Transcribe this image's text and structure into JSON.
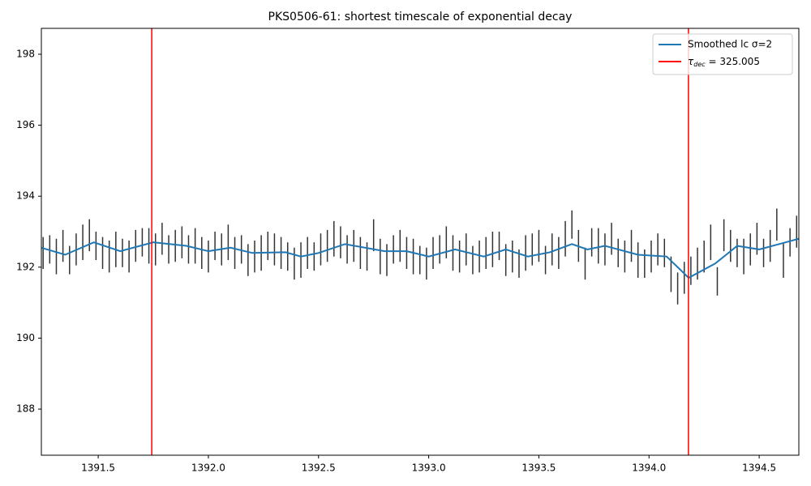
{
  "chart_data": {
    "type": "errorbar",
    "title": "PKS0506-61: shortest timescale of exponential decay",
    "x": [
      1391.25,
      1391.28,
      1391.31,
      1391.34,
      1391.37,
      1391.4,
      1391.43,
      1391.46,
      1391.49,
      1391.52,
      1391.55,
      1391.58,
      1391.61,
      1391.64,
      1391.67,
      1391.7,
      1391.73,
      1391.76,
      1391.79,
      1391.82,
      1391.85,
      1391.88,
      1391.91,
      1391.94,
      1391.97,
      1392,
      1392.03,
      1392.06,
      1392.09,
      1392.12,
      1392.15,
      1392.18,
      1392.21,
      1392.24,
      1392.27,
      1392.3,
      1392.33,
      1392.36,
      1392.39,
      1392.42,
      1392.45,
      1392.48,
      1392.51,
      1392.54,
      1392.57,
      1392.6,
      1392.63,
      1392.66,
      1392.69,
      1392.72,
      1392.75,
      1392.78,
      1392.81,
      1392.84,
      1392.87,
      1392.9,
      1392.93,
      1392.96,
      1392.99,
      1393.02,
      1393.05,
      1393.08,
      1393.11,
      1393.14,
      1393.17,
      1393.2,
      1393.23,
      1393.26,
      1393.29,
      1393.32,
      1393.35,
      1393.38,
      1393.41,
      1393.44,
      1393.47,
      1393.5,
      1393.53,
      1393.56,
      1393.59,
      1393.62,
      1393.65,
      1393.68,
      1393.71,
      1393.74,
      1393.77,
      1393.8,
      1393.83,
      1393.86,
      1393.89,
      1393.92,
      1393.95,
      1393.98,
      1394.01,
      1394.04,
      1394.07,
      1394.1,
      1394.13,
      1394.16,
      1394.19,
      1394.22,
      1394.25,
      1394.28,
      1394.31,
      1394.34,
      1394.37,
      1394.4,
      1394.43,
      1394.46,
      1394.49,
      1394.52,
      1394.55,
      1394.58,
      1394.61,
      1394.64,
      1394.67
    ],
    "values": [
      192.4,
      192.5,
      192.3,
      192.6,
      192.2,
      192.5,
      192.7,
      192.9,
      192.6,
      192.4,
      192.3,
      192.5,
      192.4,
      192.3,
      192.6,
      192.7,
      192.6,
      192.5,
      192.8,
      192.5,
      192.6,
      192.7,
      192.5,
      192.6,
      192.4,
      192.3,
      192.6,
      192.5,
      192.7,
      192.4,
      192.5,
      192.2,
      192.3,
      192.4,
      192.6,
      192.5,
      192.4,
      192.3,
      192.1,
      192.2,
      192.4,
      192.3,
      192.5,
      192.6,
      192.8,
      192.7,
      192.5,
      192.6,
      192.4,
      192.3,
      192.9,
      192.3,
      192.2,
      192.5,
      192.6,
      192.4,
      192.3,
      192.2,
      192.1,
      192.4,
      192.5,
      192.7,
      192.4,
      192.3,
      192.5,
      192.2,
      192.3,
      192.4,
      192.5,
      192.6,
      192.2,
      192.3,
      192.1,
      192.4,
      192.5,
      192.6,
      192.2,
      192.5,
      192.4,
      192.8,
      193.2,
      192.6,
      192.1,
      192.7,
      192.6,
      192.5,
      192.8,
      192.4,
      192.3,
      192.6,
      192.2,
      192.1,
      192.3,
      192.5,
      192.4,
      191.8,
      191.4,
      191.7,
      191.9,
      192.1,
      192.3,
      192.7,
      191.6,
      192.9,
      192.6,
      192.4,
      192.3,
      192.5,
      192.8,
      192.4,
      192.6,
      193.2,
      192.2,
      192.7,
      193
    ],
    "errors": [
      0.45,
      0.4,
      0.5,
      0.45,
      0.4,
      0.45,
      0.5,
      0.45,
      0.4,
      0.45,
      0.45,
      0.5,
      0.4,
      0.45,
      0.45,
      0.4,
      0.5,
      0.45,
      0.45,
      0.4,
      0.45,
      0.45,
      0.4,
      0.5,
      0.45,
      0.45,
      0.4,
      0.45,
      0.5,
      0.45,
      0.4,
      0.45,
      0.45,
      0.5,
      0.4,
      0.45,
      0.45,
      0.4,
      0.45,
      0.5,
      0.45,
      0.4,
      0.45,
      0.45,
      0.5,
      0.45,
      0.4,
      0.45,
      0.45,
      0.4,
      0.45,
      0.5,
      0.45,
      0.4,
      0.45,
      0.45,
      0.5,
      0.4,
      0.45,
      0.45,
      0.4,
      0.45,
      0.5,
      0.45,
      0.45,
      0.4,
      0.45,
      0.45,
      0.5,
      0.4,
      0.45,
      0.45,
      0.4,
      0.5,
      0.45,
      0.45,
      0.4,
      0.45,
      0.45,
      0.5,
      0.4,
      0.45,
      0.45,
      0.4,
      0.5,
      0.45,
      0.45,
      0.4,
      0.45,
      0.45,
      0.5,
      0.4,
      0.45,
      0.45,
      0.4,
      0.5,
      0.45,
      0.45,
      0.4,
      0.45,
      0.45,
      0.5,
      0.4,
      0.45,
      0.45,
      0.4,
      0.5,
      0.45,
      0.45,
      0.4,
      0.45,
      0.45,
      0.5,
      0.4,
      0.45
    ],
    "color": "#333333",
    "smooth": {
      "name": "Smoothed lc σ=2",
      "color": "#1f77b4",
      "x": [
        1391.24,
        1391.35,
        1391.48,
        1391.6,
        1391.75,
        1391.9,
        1392,
        1392.1,
        1392.2,
        1392.35,
        1392.42,
        1392.5,
        1392.62,
        1392.8,
        1392.9,
        1393,
        1393.12,
        1393.25,
        1393.35,
        1393.45,
        1393.55,
        1393.65,
        1393.72,
        1393.8,
        1393.95,
        1394.08,
        1394.18,
        1394.3,
        1394.4,
        1394.5,
        1394.62,
        1394.68
      ],
      "values": [
        192.55,
        192.35,
        192.7,
        192.45,
        192.7,
        192.6,
        192.45,
        192.55,
        192.4,
        192.42,
        192.3,
        192.4,
        192.65,
        192.45,
        192.45,
        192.3,
        192.5,
        192.3,
        192.5,
        192.3,
        192.42,
        192.65,
        192.5,
        192.6,
        192.35,
        192.3,
        191.7,
        192.1,
        192.6,
        192.5,
        192.7,
        192.8
      ]
    },
    "vlines": {
      "name_parts": [
        "τ",
        "dec",
        " = 325.005"
      ],
      "color": "#ff0000",
      "x": [
        1391.743,
        1394.179
      ]
    },
    "xlim": [
      1391.242,
      1394.68
    ],
    "ylim": [
      186.7,
      198.73
    ],
    "xticks": [
      1391.5,
      {
        "value": 1392,
        "label": "1392.0"
      },
      1392.5,
      {
        "value": 1393,
        "label": "1393.0"
      },
      1393.5,
      {
        "value": 1394,
        "label": "1394.0"
      },
      1394.5
    ],
    "yticks": [
      188,
      190,
      192,
      194,
      196,
      198
    ],
    "legend": "upper right"
  }
}
